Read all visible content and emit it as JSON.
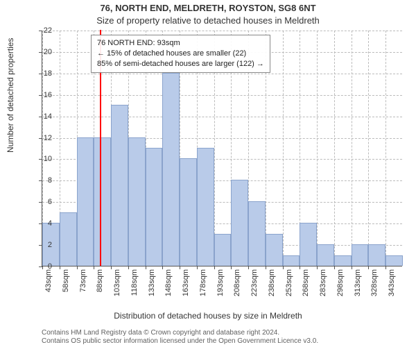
{
  "title_line1": "76, NORTH END, MELDRETH, ROYSTON, SG8 6NT",
  "title_line2": "Size of property relative to detached houses in Meldreth",
  "ylabel": "Number of detached properties",
  "xlabel": "Distribution of detached houses by size in Meldreth",
  "footer_line1": "Contains HM Land Registry data © Crown copyright and database right 2024.",
  "footer_line2": "Contains OS public sector information licensed under the Open Government Licence v3.0.",
  "chart": {
    "type": "bar-histogram",
    "background_color": "#ffffff",
    "grid_color": "#bbbbbb",
    "axis_color": "#555555",
    "bar_color": "#b9cbe9",
    "bar_border_color": "#8aa3cc",
    "marker_color": "#ff0000",
    "label_fontsize": 11,
    "title_fontsize": 13,
    "ylim": [
      0,
      22
    ],
    "ytick_step": 2,
    "x_start": 43,
    "x_step": 15,
    "x_count": 21,
    "x_unit": "sqm",
    "bar_width_ratio": 1.0,
    "values": [
      4,
      5,
      12,
      12,
      15,
      12,
      11,
      18,
      10,
      11,
      3,
      8,
      6,
      3,
      1,
      4,
      2,
      1,
      2,
      2,
      1
    ],
    "marker_x_value": 93,
    "annotation": {
      "lines": [
        "76 NORTH END: 93sqm",
        "← 15% of detached houses are smaller (22)",
        "85% of semi-detached houses are larger (122) →"
      ],
      "border_color": "#888888",
      "bg_color": "rgba(255,255,255,0.92)"
    }
  }
}
